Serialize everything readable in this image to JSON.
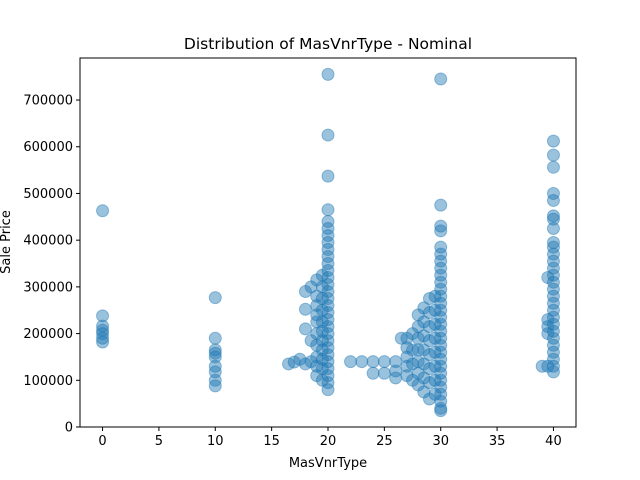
{
  "chart_data": {
    "type": "scatter",
    "title": "Distribution of MasVnrType - Nominal",
    "xlabel": "MasVnrType",
    "ylabel": "Sale Price",
    "xlim": [
      -2,
      42
    ],
    "ylim": [
      0,
      790000
    ],
    "xticks": [
      0,
      5,
      10,
      15,
      20,
      25,
      30,
      35,
      40
    ],
    "yticks": [
      0,
      100000,
      200000,
      300000,
      400000,
      500000,
      600000,
      700000
    ],
    "point_color": "#1f77b4",
    "point_alpha": 0.45,
    "grid": false,
    "points": [
      [
        0,
        463000
      ],
      [
        0,
        238000
      ],
      [
        0,
        216000
      ],
      [
        0,
        207000
      ],
      [
        0,
        200000
      ],
      [
        0,
        190000
      ],
      [
        0,
        182000
      ],
      [
        10,
        277000
      ],
      [
        10,
        190000
      ],
      [
        10,
        165000
      ],
      [
        10,
        158000
      ],
      [
        10,
        150000
      ],
      [
        10,
        130000
      ],
      [
        10,
        118000
      ],
      [
        10,
        100000
      ],
      [
        10,
        88000
      ],
      [
        16.5,
        135000
      ],
      [
        17,
        139000
      ],
      [
        17.5,
        145000
      ],
      [
        18,
        290000
      ],
      [
        18,
        252000
      ],
      [
        18,
        210000
      ],
      [
        18,
        135000
      ],
      [
        18.5,
        300000
      ],
      [
        18.5,
        185000
      ],
      [
        18.5,
        140000
      ],
      [
        19,
        315000
      ],
      [
        19,
        280000
      ],
      [
        19,
        260000
      ],
      [
        19,
        240000
      ],
      [
        19,
        225000
      ],
      [
        19,
        200000
      ],
      [
        19,
        175000
      ],
      [
        19,
        150000
      ],
      [
        19,
        130000
      ],
      [
        19,
        110000
      ],
      [
        19.5,
        325000
      ],
      [
        19.5,
        300000
      ],
      [
        19.5,
        275000
      ],
      [
        19.5,
        250000
      ],
      [
        19.5,
        225000
      ],
      [
        19.5,
        205000
      ],
      [
        19.5,
        185000
      ],
      [
        19.5,
        165000
      ],
      [
        19.5,
        145000
      ],
      [
        19.5,
        125000
      ],
      [
        19.5,
        100000
      ],
      [
        20,
        755000
      ],
      [
        20,
        625000
      ],
      [
        20,
        537000
      ],
      [
        20,
        465000
      ],
      [
        20,
        440000
      ],
      [
        20,
        425000
      ],
      [
        20,
        410000
      ],
      [
        20,
        395000
      ],
      [
        20,
        380000
      ],
      [
        20,
        365000
      ],
      [
        20,
        350000
      ],
      [
        20,
        335000
      ],
      [
        20,
        320000
      ],
      [
        20,
        305000
      ],
      [
        20,
        290000
      ],
      [
        20,
        275000
      ],
      [
        20,
        260000
      ],
      [
        20,
        245000
      ],
      [
        20,
        230000
      ],
      [
        20,
        215000
      ],
      [
        20,
        200000
      ],
      [
        20,
        185000
      ],
      [
        20,
        170000
      ],
      [
        20,
        155000
      ],
      [
        20,
        140000
      ],
      [
        20,
        125000
      ],
      [
        20,
        110000
      ],
      [
        20,
        95000
      ],
      [
        20,
        80000
      ],
      [
        22,
        140000
      ],
      [
        23,
        140000
      ],
      [
        24,
        140000
      ],
      [
        24,
        115000
      ],
      [
        25,
        140000
      ],
      [
        25,
        115000
      ],
      [
        26,
        140000
      ],
      [
        26,
        120000
      ],
      [
        26,
        105000
      ],
      [
        26.5,
        190000
      ],
      [
        27,
        190000
      ],
      [
        27,
        170000
      ],
      [
        27,
        150000
      ],
      [
        27,
        130000
      ],
      [
        27,
        110000
      ],
      [
        27.5,
        200000
      ],
      [
        27.5,
        165000
      ],
      [
        27.5,
        135000
      ],
      [
        27.5,
        100000
      ],
      [
        28,
        240000
      ],
      [
        28,
        215000
      ],
      [
        28,
        190000
      ],
      [
        28,
        165000
      ],
      [
        28,
        140000
      ],
      [
        28,
        115000
      ],
      [
        28,
        90000
      ],
      [
        28.5,
        255000
      ],
      [
        28.5,
        225000
      ],
      [
        28.5,
        195000
      ],
      [
        28.5,
        165000
      ],
      [
        28.5,
        135000
      ],
      [
        28.5,
        105000
      ],
      [
        28.5,
        75000
      ],
      [
        29,
        275000
      ],
      [
        29,
        245000
      ],
      [
        29,
        215000
      ],
      [
        29,
        185000
      ],
      [
        29,
        155000
      ],
      [
        29,
        125000
      ],
      [
        29,
        95000
      ],
      [
        29,
        60000
      ],
      [
        29.5,
        280000
      ],
      [
        29.5,
        250000
      ],
      [
        29.5,
        220000
      ],
      [
        29.5,
        190000
      ],
      [
        29.5,
        160000
      ],
      [
        29.5,
        130000
      ],
      [
        29.5,
        100000
      ],
      [
        29.5,
        70000
      ],
      [
        30,
        745000
      ],
      [
        30,
        475000
      ],
      [
        30,
        430000
      ],
      [
        30,
        420000
      ],
      [
        30,
        385000
      ],
      [
        30,
        370000
      ],
      [
        30,
        355000
      ],
      [
        30,
        340000
      ],
      [
        30,
        325000
      ],
      [
        30,
        310000
      ],
      [
        30,
        295000
      ],
      [
        30,
        280000
      ],
      [
        30,
        265000
      ],
      [
        30,
        250000
      ],
      [
        30,
        235000
      ],
      [
        30,
        220000
      ],
      [
        30,
        205000
      ],
      [
        30,
        190000
      ],
      [
        30,
        175000
      ],
      [
        30,
        160000
      ],
      [
        30,
        145000
      ],
      [
        30,
        130000
      ],
      [
        30,
        115000
      ],
      [
        30,
        100000
      ],
      [
        30,
        85000
      ],
      [
        30,
        70000
      ],
      [
        30,
        55000
      ],
      [
        30,
        40000
      ],
      [
        30,
        35000
      ],
      [
        39,
        130000
      ],
      [
        39.5,
        320000
      ],
      [
        39.5,
        230000
      ],
      [
        39.5,
        215000
      ],
      [
        39.5,
        200000
      ],
      [
        39.5,
        130000
      ],
      [
        40,
        612000
      ],
      [
        40,
        582000
      ],
      [
        40,
        556000
      ],
      [
        40,
        500000
      ],
      [
        40,
        485000
      ],
      [
        40,
        452000
      ],
      [
        40,
        445000
      ],
      [
        40,
        425000
      ],
      [
        40,
        395000
      ],
      [
        40,
        385000
      ],
      [
        40,
        370000
      ],
      [
        40,
        355000
      ],
      [
        40,
        340000
      ],
      [
        40,
        325000
      ],
      [
        40,
        310000
      ],
      [
        40,
        295000
      ],
      [
        40,
        280000
      ],
      [
        40,
        265000
      ],
      [
        40,
        250000
      ],
      [
        40,
        235000
      ],
      [
        40,
        220000
      ],
      [
        40,
        205000
      ],
      [
        40,
        190000
      ],
      [
        40,
        175000
      ],
      [
        40,
        160000
      ],
      [
        40,
        145000
      ],
      [
        40,
        130000
      ],
      [
        40,
        118000
      ]
    ]
  }
}
